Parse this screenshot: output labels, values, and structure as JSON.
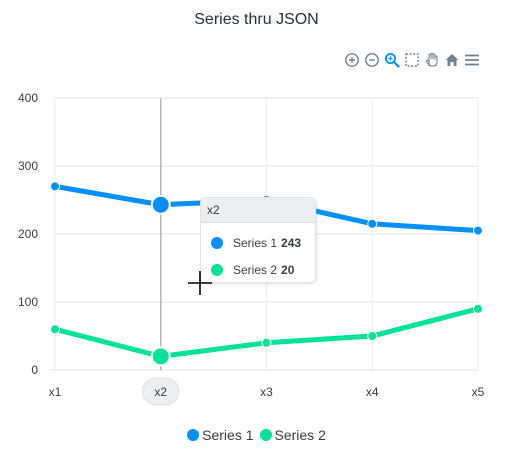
{
  "title": "Series thru JSON",
  "toolbar": {
    "buttons": [
      {
        "name": "zoom-in-icon"
      },
      {
        "name": "zoom-out-icon"
      },
      {
        "name": "zoom-selection-icon"
      },
      {
        "name": "selection-icon"
      },
      {
        "name": "pan-hand-icon"
      },
      {
        "name": "reset-home-icon"
      },
      {
        "name": "menu-icon"
      }
    ],
    "active_color": "#008ffb",
    "icon_color": "#6e8192"
  },
  "chart_data": {
    "type": "line",
    "title": "Series thru JSON",
    "categories": [
      "x1",
      "x2",
      "x3",
      "x4",
      "x5"
    ],
    "yticks": [
      "0",
      "100",
      "200",
      "300",
      "400"
    ],
    "ylim": [
      0,
      400
    ],
    "grid": true,
    "legend_position": "bottom",
    "series": [
      {
        "name": "Series 1",
        "values": [
          270,
          243,
          250,
          215,
          205
        ],
        "color": "#008ffb"
      },
      {
        "name": "Series 2",
        "values": [
          60,
          20,
          40,
          50,
          90
        ],
        "color": "#00e396"
      }
    ],
    "hover_index": 1
  },
  "tooltip": {
    "title": "x2",
    "rows": [
      {
        "label": "Series 1",
        "value": "243",
        "color": "#008ffb"
      },
      {
        "label": "Series 2",
        "value": "20",
        "color": "#00e396"
      }
    ]
  },
  "legend": {
    "items": [
      {
        "label": "Series 1",
        "color": "#008ffb"
      },
      {
        "label": "Series 2",
        "color": "#00e396"
      }
    ]
  }
}
